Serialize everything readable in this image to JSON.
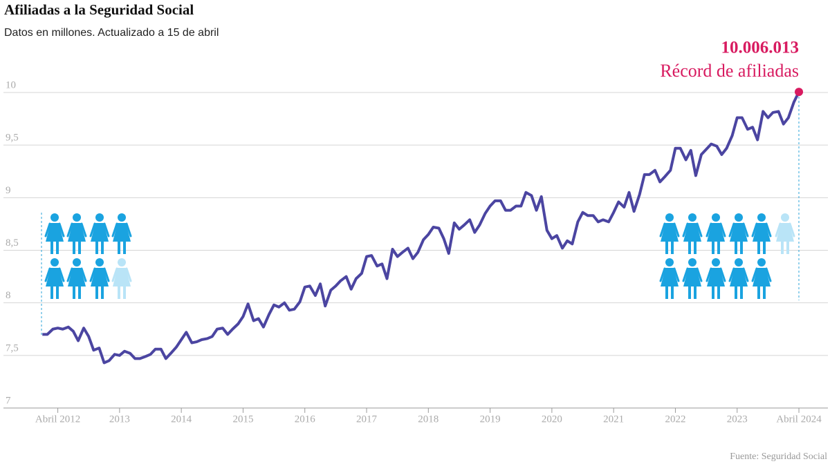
{
  "chart_data": {
    "type": "line",
    "title": "Afiliadas a la Seguridad Social",
    "subtitle": "Datos en millones. Actualizado a 15 de abril",
    "record_label": "10.006.013",
    "record_note": "Récord de afiliadas",
    "source": "Fuente: Seguridad Social",
    "xlim": [
      2011.12,
      2024.47
    ],
    "ylim": [
      7,
      10
    ],
    "xticks": [
      {
        "value": 2012,
        "label": "Abril 2012"
      },
      2013,
      2014,
      2015,
      2016,
      2017,
      2018,
      2019,
      2020,
      2021,
      2022,
      2023,
      {
        "value": 2024,
        "label": "Abril 2024"
      }
    ],
    "yticks": [
      7,
      {
        "value": 7.5,
        "label": "7,5"
      },
      8,
      {
        "value": 8.5,
        "label": "8,5"
      },
      9,
      {
        "value": 9.5,
        "label": "9,5"
      },
      10
    ],
    "grid": true,
    "x": [
      2011.75,
      2011.83,
      2011.92,
      2012,
      2012.08,
      2012.17,
      2012.25,
      2012.33,
      2012.42,
      2012.5,
      2012.58,
      2012.67,
      2012.75,
      2012.83,
      2012.92,
      2013,
      2013.08,
      2013.17,
      2013.25,
      2013.33,
      2013.42,
      2013.5,
      2013.58,
      2013.67,
      2013.75,
      2013.83,
      2013.92,
      2014,
      2014.08,
      2014.17,
      2014.25,
      2014.33,
      2014.42,
      2014.5,
      2014.58,
      2014.67,
      2014.75,
      2014.83,
      2014.92,
      2015,
      2015.08,
      2015.17,
      2015.25,
      2015.33,
      2015.42,
      2015.5,
      2015.58,
      2015.67,
      2015.75,
      2015.83,
      2015.92,
      2016,
      2016.08,
      2016.17,
      2016.25,
      2016.33,
      2016.42,
      2016.5,
      2016.58,
      2016.67,
      2016.75,
      2016.83,
      2016.92,
      2017,
      2017.08,
      2017.17,
      2017.25,
      2017.33,
      2017.42,
      2017.5,
      2017.58,
      2017.67,
      2017.75,
      2017.83,
      2017.92,
      2018,
      2018.08,
      2018.17,
      2018.25,
      2018.33,
      2018.42,
      2018.5,
      2018.58,
      2018.67,
      2018.75,
      2018.83,
      2018.92,
      2019,
      2019.08,
      2019.17,
      2019.25,
      2019.33,
      2019.42,
      2019.5,
      2019.58,
      2019.67,
      2019.75,
      2019.83,
      2019.92,
      2020,
      2020.08,
      2020.17,
      2020.25,
      2020.33,
      2020.42,
      2020.5,
      2020.58,
      2020.67,
      2020.75,
      2020.83,
      2020.92,
      2021,
      2021.08,
      2021.17,
      2021.25,
      2021.33,
      2021.42,
      2021.5,
      2021.58,
      2021.67,
      2021.75,
      2021.83,
      2021.92,
      2022,
      2022.08,
      2022.17,
      2022.25,
      2022.33,
      2022.42,
      2022.5,
      2022.58,
      2022.67,
      2022.75,
      2022.83,
      2022.92,
      2023,
      2023.08,
      2023.17,
      2023.25,
      2023.33,
      2023.42,
      2023.5,
      2023.58,
      2023.67,
      2023.75,
      2023.83,
      2023.92,
      2024
    ],
    "series": [
      {
        "name": "Afiliadas",
        "color": "#4b45a1",
        "values": [
          7.7,
          7.7,
          7.75,
          7.76,
          7.75,
          7.77,
          7.73,
          7.64,
          7.76,
          7.68,
          7.55,
          7.57,
          7.43,
          7.45,
          7.51,
          7.5,
          7.54,
          7.52,
          7.47,
          7.47,
          7.49,
          7.51,
          7.56,
          7.56,
          7.47,
          7.52,
          7.58,
          7.65,
          7.72,
          7.62,
          7.63,
          7.65,
          7.66,
          7.68,
          7.75,
          7.76,
          7.7,
          7.75,
          7.8,
          7.87,
          7.99,
          7.83,
          7.85,
          7.77,
          7.89,
          7.98,
          7.96,
          8.0,
          7.93,
          7.94,
          8.01,
          8.15,
          8.16,
          8.07,
          8.18,
          7.97,
          8.12,
          8.16,
          8.21,
          8.25,
          8.13,
          8.23,
          8.28,
          8.44,
          8.45,
          8.35,
          8.37,
          8.23,
          8.51,
          8.44,
          8.48,
          8.52,
          8.42,
          8.48,
          8.6,
          8.65,
          8.72,
          8.71,
          8.61,
          8.47,
          8.76,
          8.7,
          8.74,
          8.79,
          8.67,
          8.74,
          8.85,
          8.92,
          8.97,
          8.97,
          8.88,
          8.88,
          8.92,
          8.92,
          9.05,
          9.02,
          8.88,
          9.01,
          8.69,
          8.61,
          8.64,
          8.52,
          8.59,
          8.56,
          8.77,
          8.86,
          8.83,
          8.83,
          8.77,
          8.79,
          8.77,
          8.86,
          8.96,
          8.91,
          9.05,
          8.87,
          9.03,
          9.22,
          9.22,
          9.26,
          9.15,
          9.2,
          9.26,
          9.47,
          9.47,
          9.36,
          9.45,
          9.21,
          9.41,
          9.46,
          9.51,
          9.49,
          9.41,
          9.47,
          9.59,
          9.76,
          9.76,
          9.65,
          9.67,
          9.55,
          9.82,
          9.76,
          9.81,
          9.82,
          9.7,
          9.76,
          9.91,
          10.006013
        ]
      }
    ],
    "highlight_color": "#d81b60"
  }
}
